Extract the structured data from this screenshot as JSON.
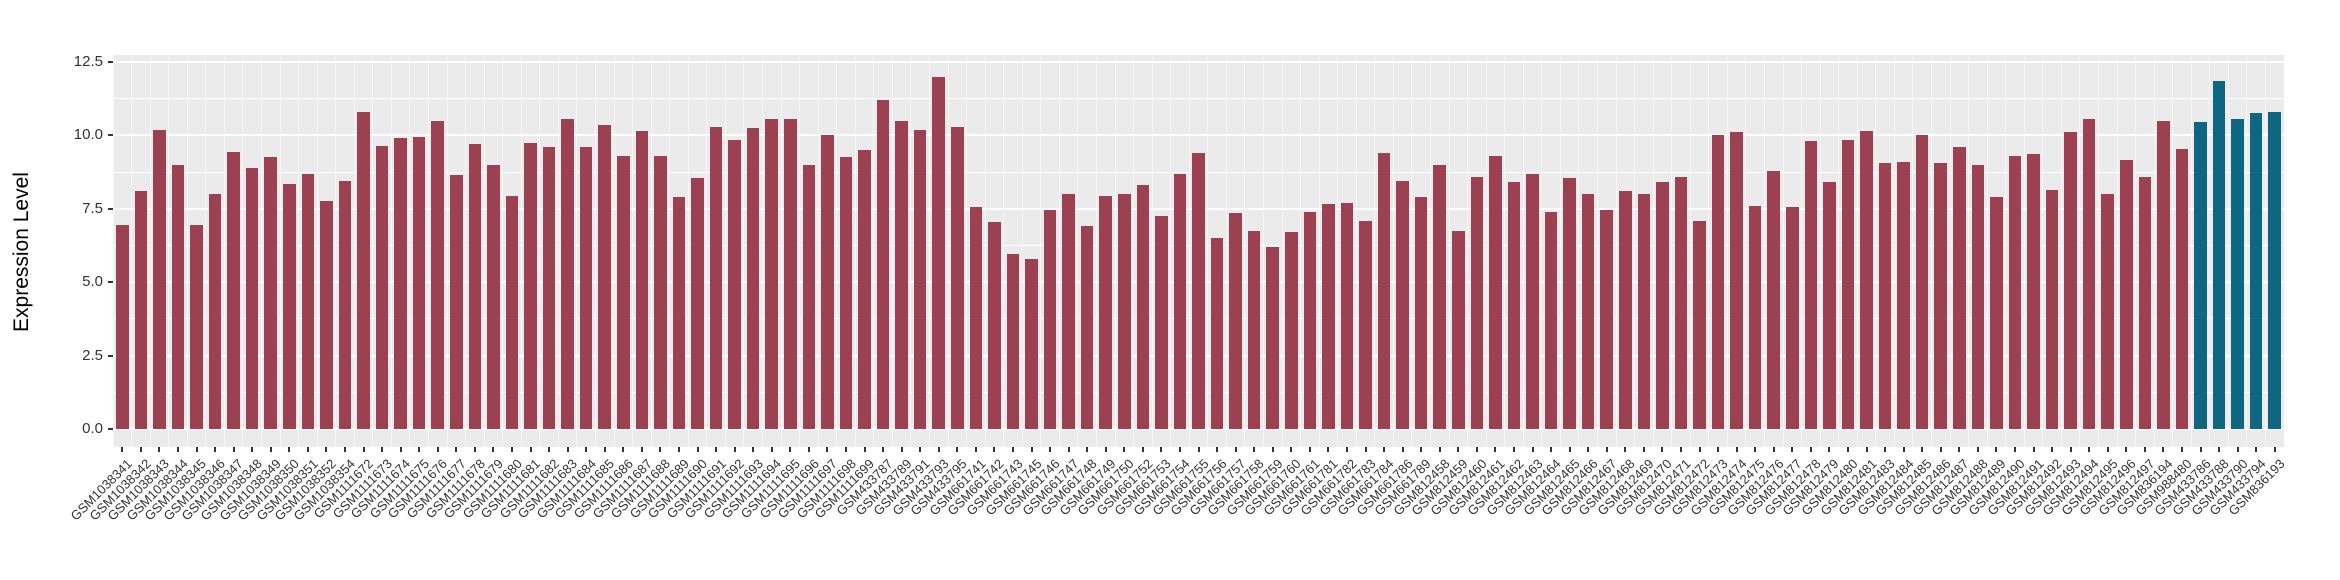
{
  "figure": {
    "background": "#FFFFFF",
    "panel_background": "#EBEBEB",
    "grid_color": "#FFFFFF",
    "axis_text_color": "#333333",
    "tick_color": "#333333"
  },
  "chart_data": {
    "type": "bar",
    "title": "",
    "xlabel": "",
    "ylabel": "Expression Level",
    "ylim": [
      0,
      12.5
    ],
    "ytick_labels": [
      "0.0",
      "2.5",
      "5.0",
      "7.5",
      "10.0",
      "12.5"
    ],
    "minor_ticks": [
      1.25,
      3.75,
      6.25,
      8.75,
      11.25
    ],
    "grid": "white major and minor horizontal and vertical lines on gray panel",
    "legend": "none",
    "bar_color_default": "#9B4152",
    "bar_color_highlight": "#0E6681",
    "highlight_categories": [
      "GSM433786",
      "GSM433788",
      "GSM433790",
      "GSM433794",
      "GSM836193"
    ],
    "categories": [
      "GSM1038341",
      "GSM1038342",
      "GSM1038343",
      "GSM1038344",
      "GSM1038345",
      "GSM1038346",
      "GSM1038347",
      "GSM1038348",
      "GSM1038349",
      "GSM1038350",
      "GSM1038351",
      "GSM1038352",
      "GSM1038354",
      "GSM1111672",
      "GSM1111673",
      "GSM1111674",
      "GSM1111675",
      "GSM1111676",
      "GSM1111677",
      "GSM1111678",
      "GSM1111679",
      "GSM1111680",
      "GSM1111681",
      "GSM1111682",
      "GSM1111683",
      "GSM1111684",
      "GSM1111685",
      "GSM1111686",
      "GSM1111687",
      "GSM1111688",
      "GSM1111689",
      "GSM1111690",
      "GSM1111691",
      "GSM1111692",
      "GSM1111693",
      "GSM1111694",
      "GSM1111695",
      "GSM1111696",
      "GSM1111697",
      "GSM1111698",
      "GSM1111699",
      "GSM433787",
      "GSM433789",
      "GSM433791",
      "GSM433793",
      "GSM433795",
      "GSM661741",
      "GSM661742",
      "GSM661743",
      "GSM661745",
      "GSM661746",
      "GSM661747",
      "GSM661748",
      "GSM661749",
      "GSM661750",
      "GSM661752",
      "GSM661753",
      "GSM661754",
      "GSM661755",
      "GSM661756",
      "GSM661757",
      "GSM661758",
      "GSM661759",
      "GSM661760",
      "GSM661761",
      "GSM661781",
      "GSM661782",
      "GSM661783",
      "GSM661784",
      "GSM661786",
      "GSM661789",
      "GSM812458",
      "GSM812459",
      "GSM812460",
      "GSM812461",
      "GSM812462",
      "GSM812463",
      "GSM812464",
      "GSM812465",
      "GSM812466",
      "GSM812467",
      "GSM812468",
      "GSM812469",
      "GSM812470",
      "GSM812471",
      "GSM812472",
      "GSM812473",
      "GSM812474",
      "GSM812475",
      "GSM812476",
      "GSM812477",
      "GSM812478",
      "GSM812479",
      "GSM812480",
      "GSM812481",
      "GSM812483",
      "GSM812484",
      "GSM812485",
      "GSM812486",
      "GSM812487",
      "GSM812488",
      "GSM812489",
      "GSM812490",
      "GSM812491",
      "GSM812492",
      "GSM812493",
      "GSM812494",
      "GSM812495",
      "GSM812496",
      "GSM812497",
      "GSM836194",
      "GSM988480",
      "GSM433786",
      "GSM433788",
      "GSM433790",
      "GSM433794",
      "GSM836193"
    ],
    "values": [
      6.95,
      8.1,
      10.2,
      9.0,
      6.95,
      8.0,
      9.45,
      8.9,
      9.25,
      8.35,
      8.7,
      7.75,
      8.45,
      10.8,
      9.65,
      9.9,
      9.95,
      10.5,
      8.65,
      9.7,
      9.0,
      7.95,
      9.75,
      9.6,
      10.55,
      9.6,
      10.35,
      9.3,
      10.15,
      9.3,
      7.9,
      8.55,
      10.3,
      9.85,
      10.25,
      10.55,
      10.55,
      9.0,
      10.0,
      9.25,
      9.5,
      11.2,
      10.5,
      10.2,
      12.0,
      10.3,
      7.55,
      7.05,
      5.95,
      5.8,
      7.45,
      8.0,
      6.9,
      7.95,
      8.0,
      8.3,
      7.25,
      8.7,
      9.4,
      6.5,
      7.35,
      6.75,
      6.2,
      6.7,
      7.4,
      7.65,
      7.7,
      7.1,
      9.4,
      8.45,
      7.9,
      9.0,
      6.75,
      8.6,
      9.3,
      8.4,
      8.7,
      7.4,
      8.55,
      8.0,
      7.45,
      8.1,
      8.0,
      8.4,
      8.6,
      7.1,
      10.0,
      10.1,
      7.6,
      8.8,
      7.55,
      9.8,
      8.4,
      9.85,
      10.15,
      9.05,
      9.1,
      10.0,
      9.05,
      9.6,
      9.0,
      7.9,
      9.3,
      9.35,
      8.15,
      10.1,
      10.55,
      8.0,
      9.15,
      8.6,
      10.5,
      9.55,
      10.45,
      11.85,
      10.55,
      10.75,
      10.8
    ]
  }
}
